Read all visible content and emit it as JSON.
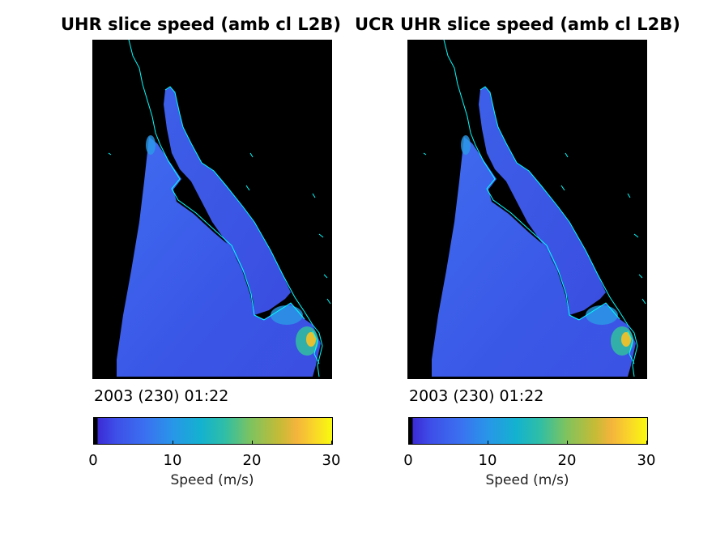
{
  "chart_data": [
    {
      "type": "heatmap",
      "title": "UHR slice speed (amb cl L2B)",
      "timestamp": "2003 (230) 01:22",
      "colorbar": {
        "label": "Speed (m/s)",
        "range": [
          0,
          30
        ],
        "ticks": [
          "0",
          "10",
          "20",
          "30"
        ],
        "colormap": "parula"
      },
      "coastline_color": "#00ffff",
      "background": "#000000"
    },
    {
      "type": "heatmap",
      "title": "UCR UHR slice speed (amb cl L2B)",
      "timestamp": "2003 (230) 01:22",
      "colorbar": {
        "label": "Speed (m/s)",
        "range": [
          0,
          30
        ],
        "ticks": [
          "0",
          "10",
          "20",
          "30"
        ],
        "colormap": "parula"
      },
      "coastline_color": "#00ffff",
      "background": "#000000"
    }
  ]
}
